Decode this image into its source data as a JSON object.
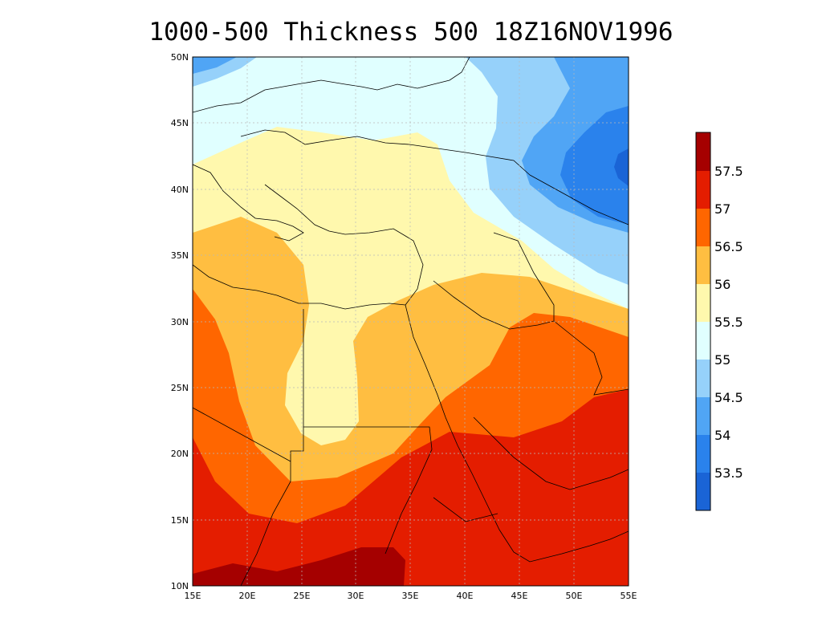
{
  "title": "1000-500 Thickness 500 18Z16NOV1996",
  "lon_labels": [
    "15E",
    "20E",
    "25E",
    "30E",
    "35E",
    "40E",
    "45E",
    "50E",
    "55E"
  ],
  "lat_labels": [
    "50N",
    "45N",
    "40N",
    "35N",
    "30N",
    "25N",
    "20N",
    "15N",
    "10N"
  ],
  "lon_range": [
    15,
    55
  ],
  "lat_range": [
    10,
    50
  ],
  "colorbar": {
    "levels": [
      "53.5",
      "54",
      "54.5",
      "55",
      "55.5",
      "56",
      "56.5",
      "57",
      "57.5"
    ],
    "colors": [
      "#1a64d6",
      "#2a82ec",
      "#50a5f5",
      "#96d1fa",
      "#e0ffff",
      "#fff8ad",
      "#ffbe41",
      "#ff6600",
      "#e41d00",
      "#a50000"
    ]
  }
}
